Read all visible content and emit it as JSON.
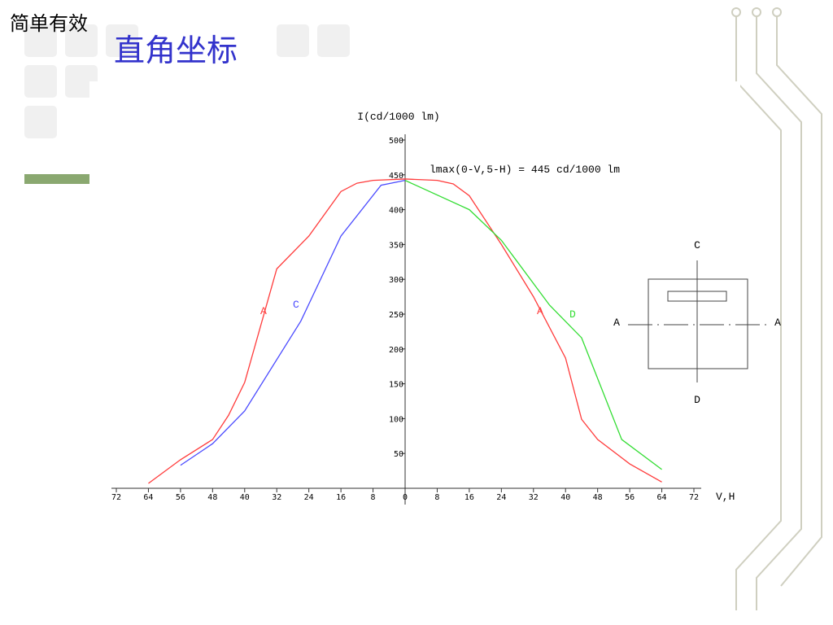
{
  "slide": {
    "tag": "简单有效",
    "title": "直角坐标"
  },
  "chart_data": {
    "type": "line",
    "y_label": "I(cd/1000 lm)",
    "x_label": "V,H",
    "annotation": "lmax(0-V,5-H) = 445 cd/1000 lm",
    "xlim": [
      -72,
      72
    ],
    "xticks": [
      {
        "value": -72,
        "label": "72"
      },
      {
        "value": -64,
        "label": "64"
      },
      {
        "value": -56,
        "label": "56"
      },
      {
        "value": -48,
        "label": "48"
      },
      {
        "value": -40,
        "label": "40"
      },
      {
        "value": -32,
        "label": "32"
      },
      {
        "value": -24,
        "label": "24"
      },
      {
        "value": -16,
        "label": "16"
      },
      {
        "value": -8,
        "label": "8"
      },
      0,
      8,
      16,
      24,
      32,
      40,
      48,
      56,
      64,
      72
    ],
    "ylim": [
      0,
      500
    ],
    "yticks": [
      50,
      100,
      150,
      200,
      250,
      300,
      350,
      400,
      450,
      500
    ],
    "series": [
      {
        "name": "A",
        "color": "#ff3b3b",
        "x": [
          -64,
          -56,
          -48,
          -44,
          -40,
          -32,
          -24,
          -16,
          -12,
          -8,
          0,
          8,
          12,
          16,
          24,
          32,
          40,
          44,
          48,
          56,
          64
        ],
        "values": [
          7,
          41,
          70,
          105,
          152,
          315,
          362,
          426,
          438,
          442,
          444,
          442,
          437,
          420,
          350,
          275,
          187,
          99,
          70,
          35,
          9
        ]
      },
      {
        "name": "C",
        "color": "#4a4aff",
        "x": [
          -56,
          -48,
          -40,
          -26,
          -16,
          -6,
          0
        ],
        "values": [
          33,
          64,
          111,
          240,
          362,
          435,
          442
        ]
      },
      {
        "name": "D",
        "color": "#33dd33",
        "x": [
          0,
          16,
          24,
          36,
          44,
          54,
          64
        ],
        "values": [
          442,
          400,
          356,
          263,
          216,
          70,
          27
        ]
      }
    ],
    "inset_labels": [
      "C",
      "A",
      "A",
      "D"
    ]
  }
}
